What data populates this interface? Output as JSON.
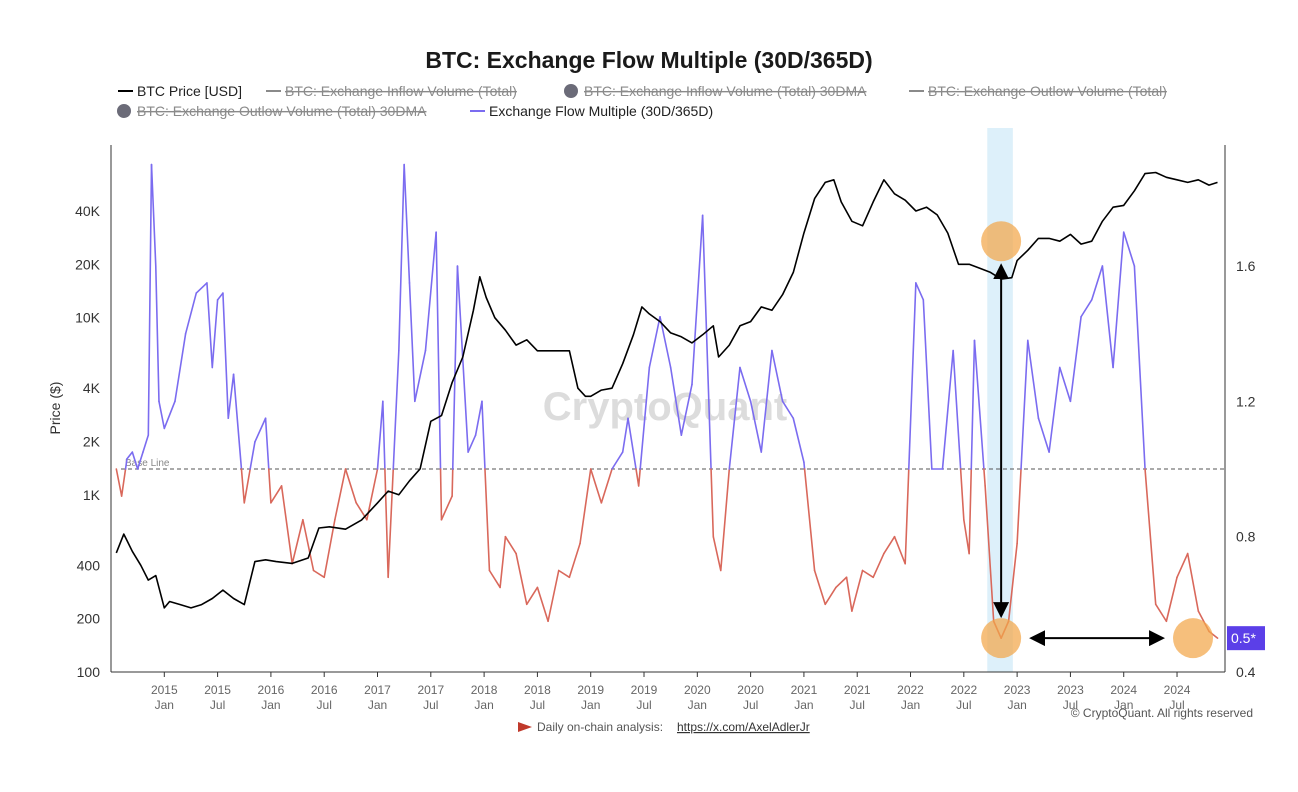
{
  "chart_data": {
    "type": "line",
    "title": "BTC: Exchange Flow Multiple (30D/365D)",
    "legend": [
      {
        "label": "BTC Price [USD]",
        "color": "#000000",
        "marker": "line",
        "disabled": false
      },
      {
        "label": "BTC: Exchange Inflow Volume (Total)",
        "color": "#8a8a8a",
        "marker": "line",
        "disabled": true
      },
      {
        "label": "BTC: Exchange Inflow Volume (Total) 30DMA",
        "color": "#6b6b78",
        "marker": "dot",
        "disabled": true
      },
      {
        "label": "BTC: Exchange Outlow Volume (Total)",
        "color": "#8a8a8a",
        "marker": "line",
        "disabled": true
      },
      {
        "label": "BTC: Exchange Outlow Volume (Total) 30DMA",
        "color": "#6b6b78",
        "marker": "dot",
        "disabled": true
      },
      {
        "label": "Exchange Flow Multiple (30D/365D)",
        "color": "#7b6cf0",
        "marker": "line",
        "disabled": false
      }
    ],
    "ylabel": "Price ($)",
    "y_left_ticks": [
      "100",
      "200",
      "400",
      "1K",
      "2K",
      "4K",
      "10K",
      "20K",
      "40K"
    ],
    "y_left_values": [
      100,
      200,
      400,
      1000,
      2000,
      4000,
      10000,
      20000,
      40000
    ],
    "y_right_ticks": [
      "0.4",
      "0.8",
      "1.2",
      "1.6"
    ],
    "y_right_values": [
      0.4,
      0.8,
      1.2,
      1.6
    ],
    "y_right_range": [
      0.4,
      2.0
    ],
    "x_range": [
      2014.5,
      2024.95
    ],
    "x_ticks": [
      {
        "year": "2015",
        "label": "Jan",
        "x": 2015.0
      },
      {
        "year": "2015",
        "label": "Jul",
        "x": 2015.5
      },
      {
        "year": "2016",
        "label": "Jan",
        "x": 2016.0
      },
      {
        "year": "2016",
        "label": "Jul",
        "x": 2016.5
      },
      {
        "year": "2017",
        "label": "Jan",
        "x": 2017.0
      },
      {
        "year": "2017",
        "label": "Jul",
        "x": 2017.5
      },
      {
        "year": "2018",
        "label": "Jan",
        "x": 2018.0
      },
      {
        "year": "2018",
        "label": "Jul",
        "x": 2018.5
      },
      {
        "year": "2019",
        "label": "Jan",
        "x": 2019.0
      },
      {
        "year": "2019",
        "label": "Jul",
        "x": 2019.5
      },
      {
        "year": "2020",
        "label": "Jan",
        "x": 2020.0
      },
      {
        "year": "2020",
        "label": "Jul",
        "x": 2020.5
      },
      {
        "year": "2021",
        "label": "Jan",
        "x": 2021.0
      },
      {
        "year": "2021",
        "label": "Jul",
        "x": 2021.5
      },
      {
        "year": "2022",
        "label": "Jan",
        "x": 2022.0
      },
      {
        "year": "2022",
        "label": "Jul",
        "x": 2022.5
      },
      {
        "year": "2023",
        "label": "Jan",
        "x": 2023.0
      },
      {
        "year": "2023",
        "label": "Jul",
        "x": 2023.5
      },
      {
        "year": "2024",
        "label": "Jan",
        "x": 2024.0
      },
      {
        "year": "2024",
        "label": "Jul",
        "x": 2024.5
      }
    ],
    "base_line": {
      "label": "Base Line",
      "value": 1.0
    },
    "current_value_label": "0.5*",
    "current_value": 0.5,
    "highlight_band": {
      "from": 2022.72,
      "to": 2022.96
    },
    "annotations_x": [
      2022.85,
      2024.65
    ],
    "price_series": {
      "x": [
        2014.55,
        2014.62,
        2014.7,
        2014.78,
        2014.85,
        2014.92,
        2015.0,
        2015.05,
        2015.15,
        2015.25,
        2015.35,
        2015.45,
        2015.55,
        2015.65,
        2015.75,
        2015.85,
        2015.95,
        2016.05,
        2016.2,
        2016.35,
        2016.45,
        2016.55,
        2016.7,
        2016.85,
        2017.0,
        2017.1,
        2017.2,
        2017.3,
        2017.4,
        2017.5,
        2017.6,
        2017.7,
        2017.8,
        2017.9,
        2017.96,
        2018.02,
        2018.1,
        2018.2,
        2018.3,
        2018.4,
        2018.5,
        2018.6,
        2018.7,
        2018.8,
        2018.88,
        2018.95,
        2019.0,
        2019.1,
        2019.2,
        2019.3,
        2019.4,
        2019.48,
        2019.55,
        2019.65,
        2019.75,
        2019.85,
        2019.95,
        2020.05,
        2020.15,
        2020.2,
        2020.3,
        2020.4,
        2020.5,
        2020.6,
        2020.7,
        2020.8,
        2020.9,
        2021.0,
        2021.1,
        2021.2,
        2021.28,
        2021.35,
        2021.45,
        2021.55,
        2021.65,
        2021.75,
        2021.85,
        2021.95,
        2022.05,
        2022.15,
        2022.25,
        2022.35,
        2022.45,
        2022.55,
        2022.65,
        2022.75,
        2022.85,
        2022.95,
        2023.0,
        2023.1,
        2023.2,
        2023.3,
        2023.4,
        2023.5,
        2023.6,
        2023.7,
        2023.8,
        2023.9,
        2024.0,
        2024.1,
        2024.2,
        2024.3,
        2024.4,
        2024.5,
        2024.6,
        2024.7,
        2024.8,
        2024.88
      ],
      "y": [
        470,
        600,
        480,
        400,
        330,
        350,
        230,
        250,
        240,
        230,
        240,
        260,
        290,
        260,
        240,
        420,
        430,
        420,
        410,
        440,
        650,
        660,
        640,
        720,
        900,
        1050,
        1000,
        1200,
        1400,
        2600,
        2800,
        4300,
        6000,
        11000,
        17000,
        13000,
        10000,
        8500,
        7000,
        7500,
        6500,
        6500,
        6500,
        6500,
        4000,
        3600,
        3600,
        3900,
        4000,
        5500,
        8000,
        11500,
        10500,
        9500,
        8200,
        7800,
        7200,
        8000,
        9000,
        6000,
        7000,
        9000,
        9500,
        11500,
        11000,
        13500,
        18000,
        30000,
        47000,
        58000,
        60000,
        45000,
        35000,
        33000,
        45000,
        60000,
        50000,
        46000,
        40000,
        42000,
        38000,
        30000,
        20000,
        20000,
        19000,
        18000,
        16500,
        16800,
        21000,
        24000,
        28000,
        28000,
        27000,
        29500,
        26000,
        27000,
        35000,
        42000,
        43000,
        52000,
        65000,
        66000,
        62000,
        60000,
        58000,
        60000,
        56000,
        58000
      ]
    },
    "multiple_series": {
      "x": [
        2014.55,
        2014.6,
        2014.65,
        2014.7,
        2014.75,
        2014.8,
        2014.85,
        2014.88,
        2014.92,
        2014.95,
        2015.0,
        2015.1,
        2015.2,
        2015.3,
        2015.4,
        2015.45,
        2015.5,
        2015.55,
        2015.6,
        2015.65,
        2015.75,
        2015.85,
        2015.95,
        2016.0,
        2016.1,
        2016.2,
        2016.3,
        2016.4,
        2016.5,
        2016.6,
        2016.7,
        2016.8,
        2016.9,
        2017.0,
        2017.05,
        2017.1,
        2017.2,
        2017.25,
        2017.3,
        2017.35,
        2017.45,
        2017.55,
        2017.6,
        2017.7,
        2017.75,
        2017.85,
        2017.92,
        2017.98,
        2018.05,
        2018.15,
        2018.2,
        2018.3,
        2018.4,
        2018.5,
        2018.6,
        2018.7,
        2018.8,
        2018.9,
        2019.0,
        2019.1,
        2019.2,
        2019.3,
        2019.35,
        2019.45,
        2019.55,
        2019.65,
        2019.75,
        2019.85,
        2019.95,
        2020.05,
        2020.15,
        2020.22,
        2020.3,
        2020.4,
        2020.5,
        2020.6,
        2020.7,
        2020.8,
        2020.9,
        2021.0,
        2021.1,
        2021.2,
        2021.3,
        2021.4,
        2021.45,
        2021.55,
        2021.65,
        2021.75,
        2021.85,
        2021.95,
        2022.05,
        2022.12,
        2022.2,
        2022.3,
        2022.4,
        2022.5,
        2022.55,
        2022.6,
        2022.7,
        2022.78,
        2022.85,
        2022.92,
        2023.0,
        2023.1,
        2023.2,
        2023.3,
        2023.4,
        2023.5,
        2023.6,
        2023.7,
        2023.8,
        2023.9,
        2024.0,
        2024.1,
        2024.2,
        2024.3,
        2024.4,
        2024.5,
        2024.6,
        2024.7,
        2024.8,
        2024.88
      ],
      "y": [
        1.0,
        0.92,
        1.03,
        1.05,
        1.0,
        1.05,
        1.1,
        1.9,
        1.6,
        1.2,
        1.12,
        1.2,
        1.4,
        1.52,
        1.55,
        1.3,
        1.5,
        1.52,
        1.15,
        1.28,
        0.9,
        1.08,
        1.15,
        0.9,
        0.95,
        0.72,
        0.85,
        0.7,
        0.68,
        0.85,
        1.0,
        0.9,
        0.85,
        1.0,
        1.2,
        0.68,
        1.35,
        1.9,
        1.55,
        1.2,
        1.35,
        1.7,
        0.85,
        0.92,
        1.6,
        1.05,
        1.1,
        1.2,
        0.7,
        0.65,
        0.8,
        0.75,
        0.6,
        0.65,
        0.55,
        0.7,
        0.68,
        0.78,
        1.0,
        0.9,
        1.0,
        1.05,
        1.15,
        0.95,
        1.3,
        1.45,
        1.3,
        1.1,
        1.25,
        1.75,
        0.8,
        0.7,
        1.0,
        1.3,
        1.2,
        1.05,
        1.35,
        1.2,
        1.15,
        1.02,
        0.7,
        0.6,
        0.65,
        0.68,
        0.58,
        0.7,
        0.68,
        0.75,
        0.8,
        0.72,
        1.55,
        1.5,
        1.0,
        1.0,
        1.35,
        0.85,
        0.75,
        1.38,
        0.95,
        0.55,
        0.5,
        0.55,
        0.78,
        1.38,
        1.15,
        1.05,
        1.3,
        1.2,
        1.45,
        1.5,
        1.6,
        1.3,
        1.7,
        1.6,
        1.0,
        0.6,
        0.55,
        0.68,
        0.75,
        0.58,
        0.52,
        0.5
      ]
    },
    "watermark": "CryptoQuant",
    "copyright": "© CryptoQuant. All rights reserved",
    "source_note": "Daily on-chain analysis:",
    "source_link": "https://x.com/AxelAdlerJr"
  },
  "colors": {
    "price": "#000000",
    "above": "#7b6cf0",
    "below": "#d9685b",
    "band": "#cfe9f8",
    "circle": "#f2a64a",
    "badge": "#5b3fe8"
  }
}
